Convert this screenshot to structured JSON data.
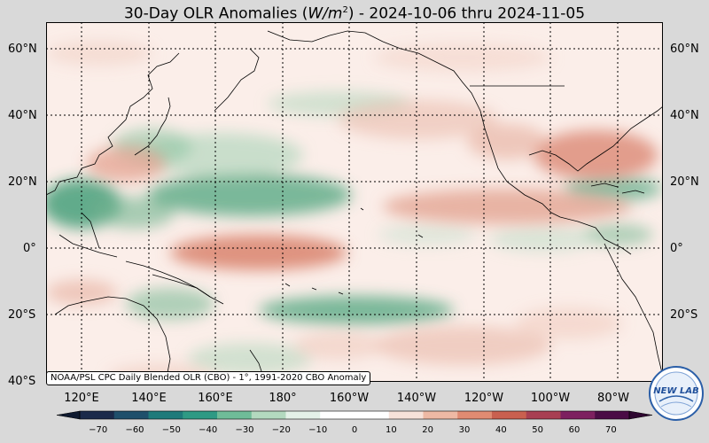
{
  "title": {
    "prefix": "30-Day OLR Anomalies (",
    "unit": "W/m",
    "unit_exp": "2",
    "suffix": ") - 2024-10-06 thru 2024-11-05"
  },
  "source_note": "NOAA/PSL CPC Daily Blended OLR (CBO) - 1°, 1991-2020 CBO Anomaly",
  "lat_labels": [
    "60°N",
    "40°N",
    "20°N",
    "0°",
    "20°S",
    "40°S"
  ],
  "lon_labels": [
    "120°E",
    "140°E",
    "160°E",
    "180°",
    "160°W",
    "140°W",
    "120°W",
    "100°W",
    "80°W"
  ],
  "colorbar": {
    "ticks": [
      "−70",
      "−60",
      "−50",
      "−40",
      "−30",
      "−20",
      "−10",
      "0",
      "10",
      "20",
      "30",
      "40",
      "50",
      "60",
      "70"
    ],
    "min": -75,
    "max": 75,
    "colors_low": [
      "#1b2a4a",
      "#1f4f6b",
      "#1e7a7a",
      "#2e9a84",
      "#6fbc98",
      "#b3d9bf",
      "#e4f1e8"
    ],
    "color_mid": "#ffffff",
    "colors_high": [
      "#f7e2d9",
      "#eeb9a4",
      "#e08b72",
      "#c9604f",
      "#a83f52",
      "#7d2060",
      "#4a0c45"
    ]
  },
  "logo": {
    "text": "NEW LAB",
    "name": "noaa-psl-logo"
  }
}
